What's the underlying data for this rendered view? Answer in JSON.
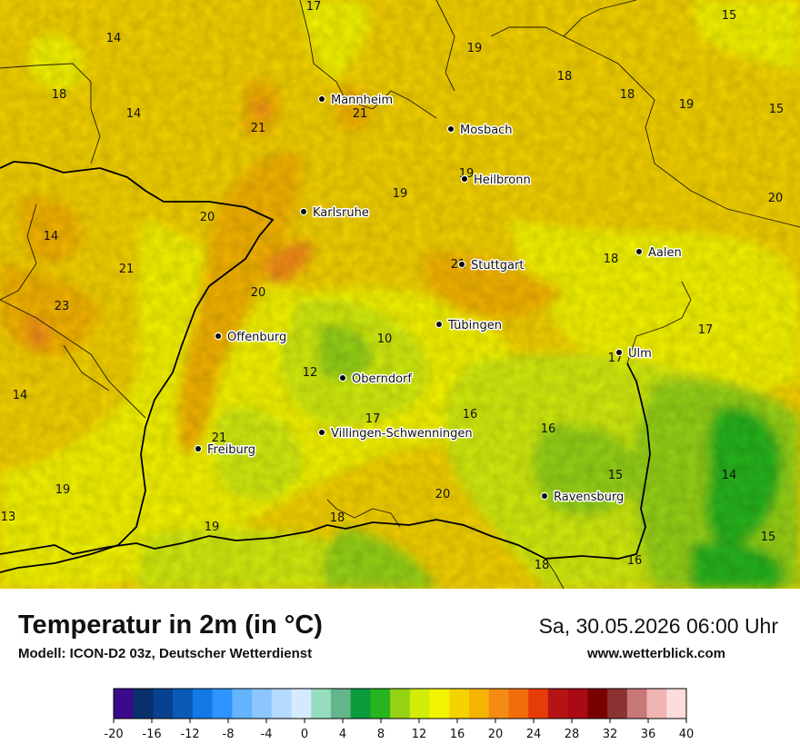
{
  "header": {
    "title": "Temperatur in 2m (in °C)",
    "subtitle": "Modell: ICON-D2 03z, Deutscher Wetterdienst",
    "datetime": "Sa, 30.05.2026 06:00 Uhr",
    "website": "www.wetterblick.com"
  },
  "cities": [
    {
      "name": "Mannheim"
    },
    {
      "name": "Mosbach"
    },
    {
      "name": "Heilbronn"
    },
    {
      "name": "Karlsruhe"
    },
    {
      "name": "Aalen"
    },
    {
      "name": "Stuttgart"
    },
    {
      "name": "Tübingen"
    },
    {
      "name": "Offenburg"
    },
    {
      "name": "Ulm"
    },
    {
      "name": "Oberndorf"
    },
    {
      "name": "Villingen-Schwenningen"
    },
    {
      "name": "Freiburg"
    },
    {
      "name": "Ravensburg"
    }
  ],
  "temperatures": [
    "17",
    "14",
    "15",
    "19",
    "18",
    "18",
    "19",
    "15",
    "14",
    "21",
    "21",
    "18",
    "19",
    "19",
    "20",
    "20",
    "14",
    "21",
    "23",
    "20",
    "18",
    "21",
    "17",
    "17",
    "10",
    "14",
    "12",
    "16",
    "21",
    "16",
    "17",
    "15",
    "14",
    "19",
    "20",
    "13",
    "19",
    "18",
    "15",
    "18",
    "16"
  ],
  "legend": {
    "colors": [
      "#3a0a8c",
      "#08306b",
      "#08418f",
      "#0a5ab8",
      "#1478e6",
      "#2e94ff",
      "#64b4ff",
      "#8cc6ff",
      "#b4daff",
      "#d6eaff",
      "#96dcbe",
      "#64b48c",
      "#0a9c3c",
      "#28b41e",
      "#96d214",
      "#d2ec0a",
      "#f4f400",
      "#f4d200",
      "#f4b400",
      "#f48c14",
      "#f06e0a",
      "#e63c0a",
      "#b41414",
      "#aa0a14",
      "#7a0000",
      "#8c3232",
      "#c87878",
      "#f0b4b4",
      "#ffdcdc"
    ],
    "ticks": [
      "-20",
      "-16",
      "-12",
      "-8",
      "-4",
      "0",
      "4",
      "8",
      "12",
      "16",
      "20",
      "24",
      "28",
      "32",
      "36",
      "40"
    ]
  }
}
